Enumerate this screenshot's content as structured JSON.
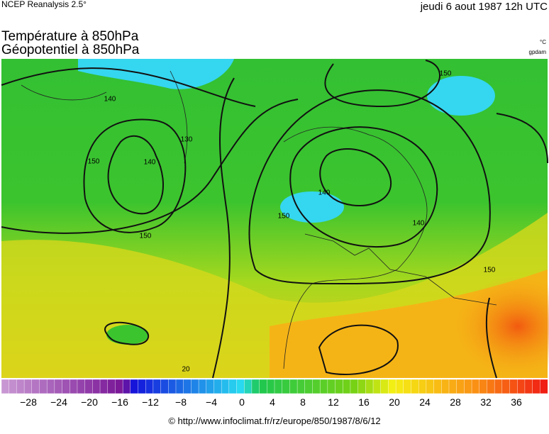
{
  "header": {
    "source": "NCEP Reanalysis 2.5°",
    "date": "jeudi 6 aout 1987 12h UTC"
  },
  "titles": [
    "Température à 850hPa",
    "Géopotentiel à 850hPa"
  ],
  "units": [
    "°C",
    "gpdam"
  ],
  "contour_labels": [
    "140",
    "150",
    "140",
    "150",
    "130",
    "150",
    "150",
    "140",
    "140",
    "150",
    "20"
  ],
  "legend": {
    "ticks": [
      "−28",
      "−24",
      "−20",
      "−16",
      "−12",
      "−8",
      "−4",
      "0",
      "4",
      "8",
      "12",
      "16",
      "20",
      "24",
      "28",
      "32",
      "36"
    ]
  },
  "footer": "© http://www.infoclimat.fr/rz/europe/850/1987/8/6/12"
}
